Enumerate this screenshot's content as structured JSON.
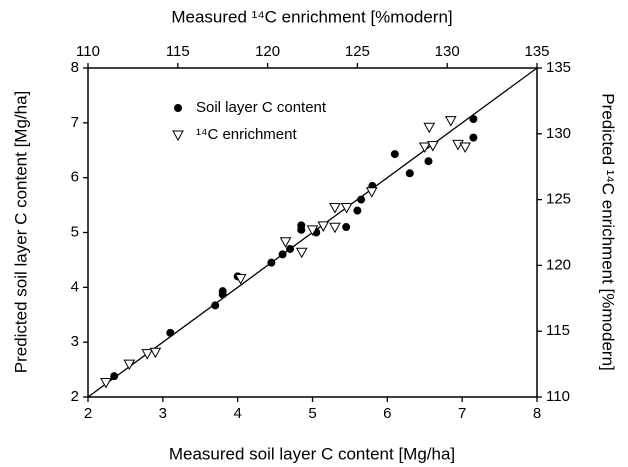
{
  "chart_data": {
    "type": "scatter",
    "xlabel": "Measured soil layer C content [Mg/ha]",
    "ylabel": "Predicted soil layer C content [Mg/ha]",
    "x2label": "Measured ¹⁴C enrichment [%modern]",
    "y2label": "Predicted ¹⁴C enrichment [%modern]",
    "xlim": [
      2,
      8
    ],
    "ylim": [
      2,
      8
    ],
    "x2lim": [
      110,
      135
    ],
    "y2lim": [
      110,
      135
    ],
    "xticks": [
      2,
      3,
      4,
      5,
      6,
      7,
      8
    ],
    "yticks": [
      2,
      3,
      4,
      5,
      6,
      7,
      8
    ],
    "x2ticks": [
      110,
      115,
      120,
      125,
      130,
      135
    ],
    "y2ticks": [
      110,
      115,
      120,
      125,
      130,
      135
    ],
    "legend": "upper left",
    "series": [
      {
        "name": "Soil layer C content",
        "color": "#000000",
        "marker": "circle",
        "x": [
          2.35,
          3.1,
          3.7,
          3.8,
          3.8,
          4.0,
          4.45,
          4.6,
          4.7,
          4.85,
          4.85,
          5.05,
          5.45,
          5.6,
          5.65,
          5.8,
          6.1,
          6.3,
          6.55,
          7.15,
          7.15
        ],
        "values": [
          2.38,
          3.17,
          3.67,
          3.87,
          3.93,
          4.2,
          4.45,
          4.6,
          4.7,
          5.13,
          5.05,
          5.0,
          5.1,
          5.4,
          5.6,
          5.85,
          6.43,
          6.08,
          6.3,
          7.07,
          6.73
        ]
      },
      {
        "name": "¹⁴C enrichment",
        "color": "#000000",
        "marker": "triangle-down",
        "axis": "y2",
        "x": [
          111.0,
          112.3,
          113.3,
          113.75,
          118.5,
          121.0,
          121.9,
          122.5,
          123.1,
          123.75,
          123.75,
          124.4,
          125.8,
          128.75,
          129.0,
          129.2,
          130.2,
          130.6,
          131.0
        ],
        "values": [
          111.1,
          112.5,
          113.3,
          113.4,
          119.0,
          121.8,
          121.0,
          122.7,
          123.0,
          122.9,
          124.4,
          124.4,
          125.6,
          129.0,
          130.5,
          129.1,
          131.0,
          129.2,
          129.0
        ]
      }
    ]
  }
}
